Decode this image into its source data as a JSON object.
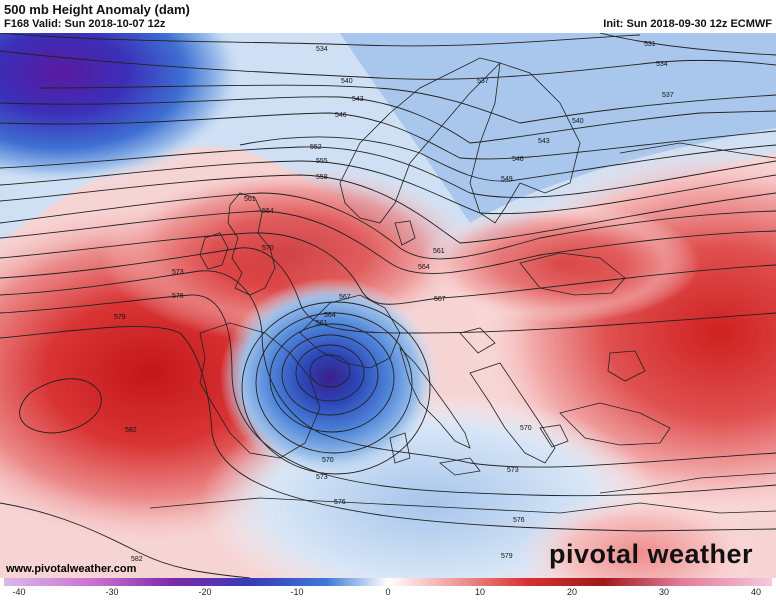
{
  "header": {
    "title": "500 mb Height Anomaly (dam)",
    "valid": "F168 Valid: Sun 2018-10-07 12z",
    "init": "Init: Sun 2018-09-30 12z ECMWF"
  },
  "map": {
    "field": "500 mb height anomaly",
    "palette": {
      "strong_negative": "#4a1a9c",
      "negative": "#2a5fd0",
      "weak_negative": "#c7daf1",
      "neutral": "#ffffff",
      "weak_positive": "#f6c6c6",
      "positive": "#e04848",
      "strong_positive": "#c71e1e"
    },
    "contour_labels": [
      {
        "text": "534"
      },
      {
        "text": "537"
      },
      {
        "text": "540"
      },
      {
        "text": "543"
      },
      {
        "text": "546"
      },
      {
        "text": "549"
      },
      {
        "text": "552"
      },
      {
        "text": "555"
      },
      {
        "text": "558"
      },
      {
        "text": "561"
      },
      {
        "text": "564"
      },
      {
        "text": "567"
      },
      {
        "text": "570"
      },
      {
        "text": "573"
      },
      {
        "text": "576"
      },
      {
        "text": "579"
      },
      {
        "text": "582"
      },
      {
        "text": "531"
      }
    ]
  },
  "colorbar": {
    "ticks": [
      "-40",
      "-30",
      "-20",
      "-10",
      "0",
      "10",
      "20",
      "30",
      "40"
    ],
    "min": -40,
    "max": 40
  },
  "footer": {
    "site": "www.pivotalweather.com",
    "brand": "pivotal weather"
  }
}
